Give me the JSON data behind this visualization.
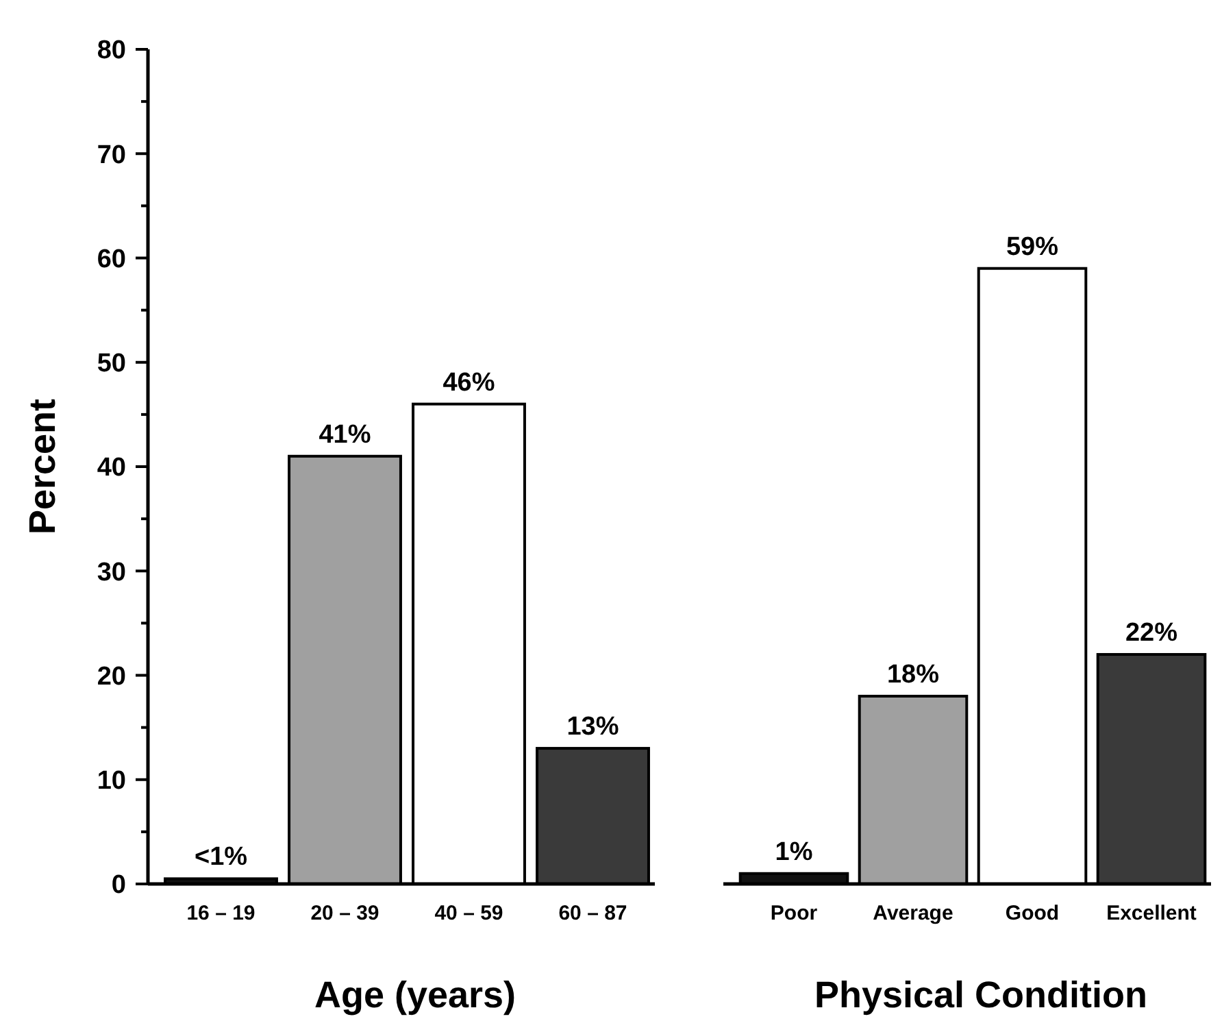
{
  "chart_data": [
    {
      "type": "bar",
      "xlabel": "Age (years)",
      "ylabel": "Percent",
      "categories": [
        "16 – 19",
        "20 – 39",
        "40 – 59",
        "60 – 87"
      ],
      "values": [
        0.5,
        41,
        46,
        13
      ],
      "colors": [
        "#111111",
        "#a0a0a0",
        "#ffffff",
        "#3a3a3a"
      ],
      "value_labels": [
        "<1%",
        "41%",
        "46%",
        "13%"
      ],
      "ylim": [
        0,
        80
      ],
      "yticks": [
        0,
        {
          "value": 5,
          "label": null
        },
        10,
        {
          "value": 15,
          "label": null
        },
        20,
        {
          "value": 25,
          "label": null
        },
        30,
        {
          "value": 35,
          "label": null
        },
        40,
        {
          "value": 45,
          "label": null
        },
        50,
        {
          "value": 55,
          "label": null
        },
        60,
        {
          "value": 65,
          "label": null
        },
        70,
        {
          "value": 75,
          "label": null
        },
        80
      ]
    },
    {
      "type": "bar",
      "xlabel": "Physical Condition",
      "categories": [
        "Poor",
        "Average",
        "Good",
        "Excellent"
      ],
      "values": [
        1,
        18,
        59,
        22
      ],
      "colors": [
        "#111111",
        "#a0a0a0",
        "#ffffff",
        "#3a3a3a"
      ],
      "value_labels": [
        "1%",
        "18%",
        "59%",
        "22%"
      ],
      "ylim": [
        0,
        80
      ],
      "tick_labels": "x"
    }
  ]
}
